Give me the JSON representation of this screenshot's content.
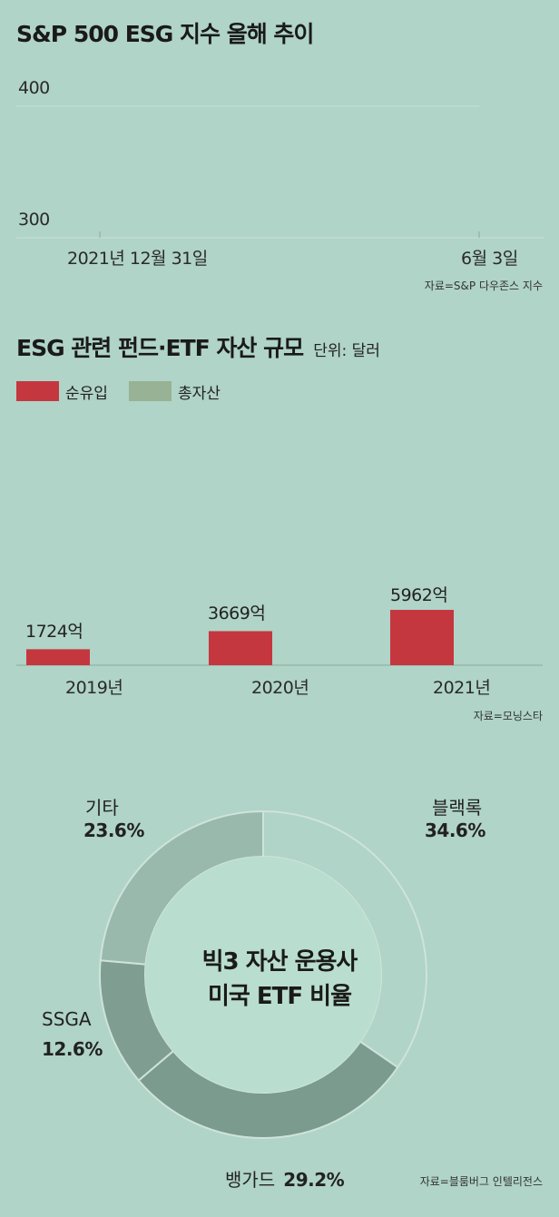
{
  "chart_data": [
    {
      "type": "line",
      "title": "S&P 500 ESG 지수 올해 추이",
      "y_ticks": [
        "400",
        "300"
      ],
      "x_ticks": [
        "2021년 12월 31일",
        "6월 3일"
      ],
      "ylim": [
        300,
        400
      ],
      "grid": true,
      "source": "자료=S&P 다우존스 지수",
      "series": []
    },
    {
      "type": "bar",
      "title": "ESG 관련 펀드·ETF 자산 규모",
      "unit": "단위: 달러",
      "legend": [
        {
          "name": "순유입",
          "color": "#c5373f"
        },
        {
          "name": "총자산",
          "color": "#98b295"
        }
      ],
      "legend_placement": "top-left",
      "categories": [
        "2019년",
        "2020년",
        "2021년"
      ],
      "series": [
        {
          "name": "순유입",
          "values": [
            1724,
            3669,
            5962
          ],
          "labels": [
            "1724억",
            "3669억",
            "5962억"
          ]
        }
      ],
      "source": "자료=모닝스타"
    },
    {
      "type": "pie",
      "title_lines": [
        "빅3 자산 운용사",
        "미국 ETF 비율"
      ],
      "slices": [
        {
          "name": "블랙록",
          "value": 34.6,
          "label": "34.6%",
          "color": "#b0d4c7"
        },
        {
          "name": "뱅가드",
          "value": 29.2,
          "label": "29.2%",
          "color": "#7a9b8e"
        },
        {
          "name": "SSGA",
          "value": 12.6,
          "label": "12.6%",
          "color": "#7f9e91"
        },
        {
          "name": "기타",
          "value": 23.6,
          "label": "23.6%",
          "color": "#9ab9ad"
        }
      ],
      "center_color": "#b9ddcf",
      "source": "자료=블룸버그 인텔리전스"
    }
  ]
}
